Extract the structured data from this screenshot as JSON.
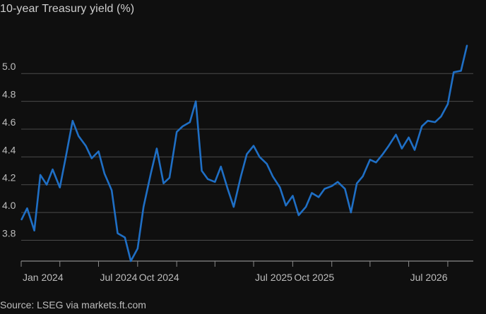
{
  "title": "10-year Treasury yield (%)",
  "source": "Source: LSEG via markets.ft.com",
  "chart_data": {
    "type": "line",
    "ylim": [
      3.65,
      5.25
    ],
    "yticks": [
      3.8,
      4.0,
      4.2,
      4.4,
      4.6,
      4.8,
      5.0
    ],
    "xlim": [
      "2024-01-01",
      "2026-11-30"
    ],
    "x_tick_marks": [
      "2024-01-01",
      "2024-04-01",
      "2024-07-01",
      "2024-10-01",
      "2025-01-01",
      "2025-04-01",
      "2025-07-01",
      "2025-10-01",
      "2026-01-01",
      "2026-04-01",
      "2026-07-01",
      "2026-10-01"
    ],
    "x_tick_labels": [
      {
        "date": "2024-01-01",
        "label": "Jan 2024"
      },
      {
        "date": "2024-07-01",
        "label": "Jul 2024"
      },
      {
        "date": "2024-10-01",
        "label": "Oct 2024"
      },
      {
        "date": "2025-07-01",
        "label": "Jul 2025"
      },
      {
        "date": "2025-10-01",
        "label": "Oct 2025"
      },
      {
        "date": "2026-07-01",
        "label": "Jul 2026"
      }
    ],
    "grid": true,
    "color": "#1f6fc5",
    "series": [
      {
        "x": [
          "2024-01-02",
          "2024-01-15",
          "2024-02-01",
          "2024-02-15",
          "2024-03-01",
          "2024-03-15",
          "2024-04-01",
          "2024-04-15",
          "2024-05-01",
          "2024-05-15",
          "2024-06-01",
          "2024-06-15",
          "2024-07-01",
          "2024-07-15",
          "2024-08-01",
          "2024-08-15",
          "2024-09-01",
          "2024-09-15",
          "2024-10-01",
          "2024-10-15",
          "2024-11-01",
          "2024-11-15",
          "2024-12-01",
          "2024-12-15",
          "2025-01-01",
          "2025-01-15",
          "2025-02-01",
          "2025-02-15",
          "2025-03-01",
          "2025-03-15",
          "2025-04-01",
          "2025-04-15",
          "2025-05-01",
          "2025-05-15",
          "2025-06-01",
          "2025-06-15",
          "2025-07-01",
          "2025-07-15",
          "2025-08-01",
          "2025-08-15",
          "2025-09-01",
          "2025-09-15",
          "2025-10-01",
          "2025-10-15",
          "2025-11-01",
          "2025-11-15",
          "2025-12-01",
          "2025-12-15",
          "2026-01-01",
          "2026-01-15",
          "2026-02-01",
          "2026-02-15",
          "2026-03-01",
          "2026-03-15",
          "2026-04-01",
          "2026-04-15",
          "2026-05-01",
          "2026-05-15",
          "2026-06-01",
          "2026-06-15",
          "2026-07-01",
          "2026-07-15",
          "2026-08-01",
          "2026-08-15",
          "2026-09-01",
          "2026-09-15",
          "2026-10-01",
          "2026-10-15",
          "2026-11-01",
          "2026-11-15"
        ],
        "y": [
          3.95,
          4.03,
          3.87,
          4.27,
          4.2,
          4.31,
          4.18,
          4.4,
          4.66,
          4.55,
          4.48,
          4.39,
          4.44,
          4.28,
          4.16,
          3.85,
          3.82,
          3.65,
          3.74,
          4.04,
          4.28,
          4.46,
          4.21,
          4.25,
          4.58,
          4.62,
          4.65,
          4.8,
          4.3,
          4.24,
          4.22,
          4.33,
          4.17,
          4.04,
          4.26,
          4.42,
          4.48,
          4.4,
          4.35,
          4.26,
          4.18,
          4.05,
          4.12,
          3.98,
          4.04,
          4.14,
          4.11,
          4.17,
          4.19,
          4.22,
          4.17,
          4.0,
          4.21,
          4.26,
          4.38,
          4.36,
          4.42,
          4.48,
          4.56,
          4.46,
          4.54,
          4.45,
          4.62,
          4.66,
          4.65,
          4.69,
          4.78,
          5.01,
          5.02,
          5.2
        ]
      }
    ]
  }
}
